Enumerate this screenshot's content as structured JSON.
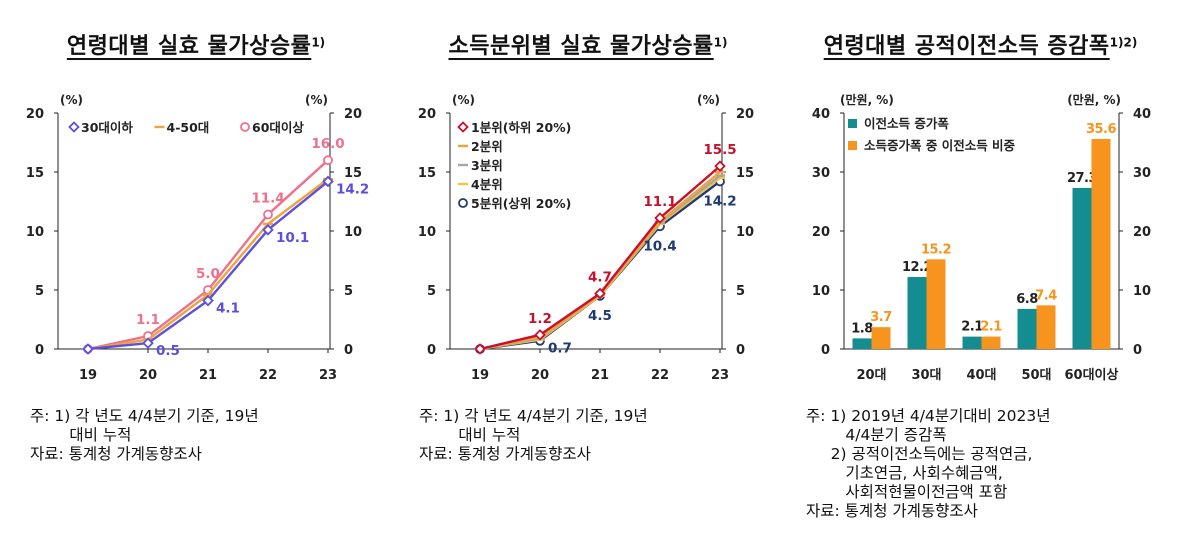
{
  "chart_data": [
    {
      "type": "line",
      "title": "연령대별 실효 물가상승률",
      "title_sup": "1)",
      "unit_left": "(%)",
      "unit_right": "(%)",
      "categories": [
        "19",
        "20",
        "21",
        "22",
        "23"
      ],
      "ylim": [
        0,
        20
      ],
      "yticks": [
        "0",
        "5",
        "10",
        "15",
        "20"
      ],
      "legend_position": "top-left",
      "series": [
        {
          "name": "30대이하",
          "color": "#5B4FE0",
          "marker": "diamond",
          "values": [
            0,
            0.5,
            4.1,
            10.1,
            14.2
          ]
        },
        {
          "name": "4-50대",
          "color": "#F2A23A",
          "marker": "dash",
          "values": [
            0,
            0.8,
            4.6,
            10.6,
            14.4
          ]
        },
        {
          "name": "60대이상",
          "color": "#F0708C",
          "marker": "circle",
          "values": [
            0,
            1.1,
            5.0,
            11.4,
            16.0
          ]
        }
      ],
      "data_labels": [
        {
          "series": 2,
          "index": 1,
          "text": "1.1",
          "color": "#F0708C",
          "pos": "above"
        },
        {
          "series": 0,
          "index": 1,
          "text": "0.5",
          "color": "#5B4FE0",
          "pos": "right"
        },
        {
          "series": 2,
          "index": 2,
          "text": "5.0",
          "color": "#F0708C",
          "pos": "above"
        },
        {
          "series": 0,
          "index": 2,
          "text": "4.1",
          "color": "#5B4FE0",
          "pos": "right"
        },
        {
          "series": 2,
          "index": 3,
          "text": "11.4",
          "color": "#F0708C",
          "pos": "above"
        },
        {
          "series": 0,
          "index": 3,
          "text": "10.1",
          "color": "#5B4FE0",
          "pos": "right"
        },
        {
          "series": 2,
          "index": 4,
          "text": "16.0",
          "color": "#F0708C",
          "pos": "above"
        },
        {
          "series": 0,
          "index": 4,
          "text": "14.2",
          "color": "#5B4FE0",
          "pos": "right"
        }
      ],
      "notes": [
        "주: 1) 각 년도 4/4분기 기준, 19년",
        "        대비 누적",
        "자료: 통계청 가계동향조사"
      ]
    },
    {
      "type": "line",
      "title": "소득분위별 실효 물가상승률",
      "title_sup": "1)",
      "unit_left": "(%)",
      "unit_right": "(%)",
      "categories": [
        "19",
        "20",
        "21",
        "22",
        "23"
      ],
      "ylim": [
        0,
        20
      ],
      "yticks": [
        "0",
        "5",
        "10",
        "15",
        "20"
      ],
      "legend_position": "top-left",
      "series": [
        {
          "name": "1분위(하위 20%)",
          "color": "#C8102E",
          "marker": "diamond",
          "values": [
            0,
            1.2,
            4.7,
            11.1,
            15.5
          ]
        },
        {
          "name": "2분위",
          "color": "#F2A23A",
          "marker": "dash",
          "values": [
            0,
            1.0,
            4.6,
            10.8,
            15.0
          ]
        },
        {
          "name": "3분위",
          "color": "#A6A6A6",
          "marker": "dash",
          "values": [
            0,
            0.9,
            4.6,
            10.7,
            14.7
          ]
        },
        {
          "name": "4분위",
          "color": "#F5C242",
          "marker": "dash",
          "values": [
            0,
            0.8,
            4.5,
            10.6,
            14.5
          ]
        },
        {
          "name": "5분위(상위 20%)",
          "color": "#1F3A6E",
          "marker": "circle",
          "values": [
            0,
            0.7,
            4.5,
            10.4,
            14.2
          ]
        }
      ],
      "data_labels": [
        {
          "series": 0,
          "index": 1,
          "text": "1.2",
          "color": "#C8102E",
          "pos": "above"
        },
        {
          "series": 4,
          "index": 1,
          "text": "0.7",
          "color": "#1F3A6E",
          "pos": "right"
        },
        {
          "series": 0,
          "index": 2,
          "text": "4.7",
          "color": "#C8102E",
          "pos": "above"
        },
        {
          "series": 4,
          "index": 2,
          "text": "4.5",
          "color": "#1F3A6E",
          "pos": "below"
        },
        {
          "series": 0,
          "index": 3,
          "text": "11.1",
          "color": "#C8102E",
          "pos": "above"
        },
        {
          "series": 4,
          "index": 3,
          "text": "10.4",
          "color": "#1F3A6E",
          "pos": "below"
        },
        {
          "series": 0,
          "index": 4,
          "text": "15.5",
          "color": "#C8102E",
          "pos": "above"
        },
        {
          "series": 4,
          "index": 4,
          "text": "14.2",
          "color": "#1F3A6E",
          "pos": "below"
        }
      ],
      "notes": [
        "주: 1) 각 년도 4/4분기 기준, 19년",
        "        대비 누적",
        "자료: 통계청 가계동향조사"
      ]
    },
    {
      "type": "bar",
      "title": "연령대별 공적이전소득 증감폭",
      "title_sup": "1)2)",
      "unit_left": "(만원, %)",
      "unit_right": "(만원, %)",
      "categories": [
        "20대",
        "30대",
        "40대",
        "50대",
        "60대이상"
      ],
      "ylim": [
        0,
        40
      ],
      "yticks": [
        "0",
        "10",
        "20",
        "30",
        "40"
      ],
      "legend_position": "top-left",
      "series": [
        {
          "name": "이전소득 증가폭",
          "color": "#138D90",
          "values": [
            1.8,
            12.2,
            2.1,
            6.8,
            27.3
          ],
          "labels": [
            "1.8",
            "12.2",
            "2.1",
            "6.8",
            "27.3"
          ],
          "label_color": "#222222"
        },
        {
          "name": "소득증가폭 중 이전소득 비중",
          "color": "#F7941D",
          "values": [
            3.7,
            15.2,
            2.1,
            7.4,
            35.6
          ],
          "labels": [
            "3.7",
            "15.2",
            "2.1",
            "7.4",
            "35.6"
          ],
          "label_color": "#F7941D"
        }
      ],
      "notes": [
        "주: 1) 2019년 4/4분기대비 2023년",
        "        4/4분기 증감폭",
        "     2) 공적이전소득에는 공적연금,",
        "        기초연금, 사회수혜금액,",
        "        사회적현물이전금액 포함",
        "자료: 통계청 가계동향조사"
      ]
    }
  ]
}
